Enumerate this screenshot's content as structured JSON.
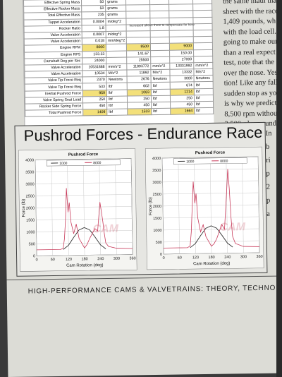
{
  "spreadsheet": {
    "rows": [
      {
        "label": "Effective Spring Mass",
        "v1": "50",
        "u1": "grams",
        "v2": "",
        "u2": "",
        "v3": "",
        "u3": ""
      },
      {
        "label": "Effective Rocker Mass",
        "v1": "50",
        "u1": "grams",
        "v2": "",
        "u2": "",
        "v3": "",
        "u3": ""
      },
      {
        "label": "Total Effective Mass",
        "v1": "235",
        "u1": "grams",
        "v2": "",
        "u2": "",
        "v3": "",
        "u3": ""
      },
      {
        "label": "Tappet Acceleration",
        "v1": "0.0004",
        "u1": "in/deg^2",
        "v2": "",
        "u2": "",
        "v3": "",
        "u3": ""
      },
      {
        "label": "Rocker Ratio",
        "v1": "1.8",
        "u1": "",
        "v2": "",
        "u2": "",
        "v3": "",
        "u3": ""
      },
      {
        "label": "Valve Acceleration",
        "v1": "0.0007",
        "u1": "in/deg^2",
        "v2": "",
        "u2": "",
        "v3": "",
        "u3": ""
      },
      {
        "label": "Valve Acceleration",
        "v1": "0.018",
        "u1": "mm/deg^2",
        "v2": "",
        "u2": "",
        "v3": "",
        "u3": ""
      },
      {
        "label": "Engine RPM",
        "v1": "8000",
        "u1": "",
        "v2": "8500",
        "u2": "",
        "v3": "9000",
        "u3": ""
      },
      {
        "label": "Engine RPS",
        "v1": "133.33",
        "u1": "",
        "v2": "141.67",
        "u2": "",
        "v3": "150.00",
        "u3": ""
      },
      {
        "label": "Camshaft Deg per Sec",
        "v1": "24000",
        "u1": "",
        "v2": "25500",
        "u2": "",
        "v3": "27000",
        "u3": ""
      },
      {
        "label": "Valve Acceleration",
        "v1": "10531888",
        "u1": "mm/s^2",
        "v2": "11893772",
        "u2": "mm/s^2",
        "v3": "13331992",
        "u3": "mm/s^2"
      },
      {
        "label": "Valve Acceleration",
        "v1": "10534",
        "u1": "M/s^2",
        "v2": "11892",
        "u2": "M/s^2",
        "v3": "13332",
        "u3": "M/s^2"
      },
      {
        "label": "Valve Tip Force Req",
        "v1": "2370",
        "u1": "Newtons",
        "v2": "2676",
        "u2": "Newtons",
        "v3": "3000",
        "u3": "Newtons"
      },
      {
        "label": "Valve Tip Force Req",
        "v1": "533",
        "u1": "lbf",
        "v2": "602",
        "u2": "lbf",
        "v3": "674",
        "u3": "lbf"
      },
      {
        "label": "Inertial Pushrod Force",
        "v1": "959",
        "u1": "lbf",
        "v2": "1083",
        "u2": "lbf",
        "v3": "1214",
        "u3": "lbf"
      },
      {
        "label": "Valve Spring Seat Load",
        "v1": "250",
        "u1": "lbf",
        "v2": "250",
        "u2": "lbf",
        "v3": "250",
        "u3": "lbf"
      },
      {
        "label": "Rocker Side Spring Force",
        "v1": "450",
        "u1": "lbf",
        "v2": "450",
        "u2": "lbf",
        "v3": "450",
        "u3": "lbf"
      },
      {
        "label": "Total Pushrod Force",
        "v1": "1409",
        "u1": "lbf",
        "v2": "1533",
        "u2": "lbf",
        "v3": "1664",
        "u3": "lbf"
      }
    ],
    "note": "Increased above three to compensate for here"
  },
  "body_text": {
    "lines": [
      "the same math tha",
      "sheet with the race",
      "1,409 pounds, wh",
      "with the load cell.",
      "going to make our",
      "than a real expect",
      "test, note that the",
      "over the nose. Yes",
      "tion! Like any fall",
      "sudden stop as yo",
      "is why we predict",
      "8,500 rpm without",
      "3,500-plus pound"
    ],
    "right_lines": [
      "In",
      "b",
      "ri",
      "p",
      "2",
      "p",
      "a"
    ]
  },
  "figure": {
    "title": "Pushrod Forces - Endurance Race",
    "watermark": "CAM",
    "charts": [
      {
        "chart_data": {
          "type": "line",
          "title": "Pushrod Force",
          "xlabel": "Cam Rotation (deg)",
          "ylabel": "Force (lb)",
          "xlim": [
            0,
            360
          ],
          "ylim": [
            0,
            4000
          ],
          "xticks": [
            0,
            60,
            120,
            180,
            240,
            300,
            360
          ],
          "yticks": [
            0,
            500,
            1000,
            1500,
            2000,
            2500,
            3000,
            3500,
            4000
          ],
          "legend": [
            "1000",
            "8000"
          ],
          "series": [
            {
              "name": "1000",
              "color": "#333333",
              "x": [
                100,
                120,
                140,
                160,
                180,
                200,
                220,
                240,
                260
              ],
              "y": [
                250,
                420,
                750,
                1050,
                1150,
                1050,
                750,
                420,
                250
              ]
            },
            {
              "name": "8000",
              "color": "#c83a5a",
              "x": [
                0,
                90,
                100,
                105,
                110,
                115,
                120,
                125,
                130,
                140,
                150,
                160,
                170,
                180,
                190,
                200,
                210,
                220,
                230,
                235,
                240,
                245,
                250,
                255,
                260,
                270,
                300,
                360
              ],
              "y": [
                250,
                250,
                300,
                700,
                1500,
                2800,
                1800,
                2200,
                1400,
                900,
                1300,
                700,
                500,
                300,
                450,
                700,
                900,
                1100,
                1000,
                1600,
                2200,
                1800,
                1400,
                900,
                500,
                350,
                270,
                250
              ]
            }
          ]
        }
      },
      {
        "chart_data": {
          "type": "line",
          "title": "Pushrod Force",
          "xlabel": "Cam Rotation (deg)",
          "ylabel": "Force (lb)",
          "xlim": [
            0,
            360
          ],
          "ylim": [
            0,
            4000
          ],
          "xticks": [
            0,
            60,
            120,
            180,
            240,
            300,
            360
          ],
          "yticks": [
            0,
            500,
            1000,
            1500,
            2000,
            2500,
            3000,
            3500,
            4000
          ],
          "legend": [
            "1000",
            "8000"
          ],
          "series": [
            {
              "name": "1000",
              "color": "#333333",
              "x": [
                100,
                120,
                140,
                160,
                180,
                200,
                220,
                240,
                260
              ],
              "y": [
                250,
                420,
                750,
                1050,
                1150,
                1050,
                750,
                420,
                250
              ]
            },
            {
              "name": "8000",
              "color": "#c83a5a",
              "x": [
                0,
                90,
                100,
                105,
                110,
                115,
                120,
                125,
                130,
                140,
                150,
                160,
                170,
                180,
                190,
                200,
                210,
                220,
                230,
                240,
                245,
                250,
                255,
                260,
                270,
                300,
                360
              ],
              "y": [
                250,
                250,
                320,
                900,
                2000,
                3000,
                2100,
                2500,
                1500,
                900,
                1200,
                700,
                500,
                300,
                400,
                600,
                900,
                1200,
                1000,
                2600,
                3500,
                2700,
                1500,
                700,
                400,
                270,
                250
              ]
            }
          ]
        }
      }
    ]
  },
  "footer": "HIGH-PERFORMANCE CAMS & VALVETRAINS: THEORY, TECHNO"
}
